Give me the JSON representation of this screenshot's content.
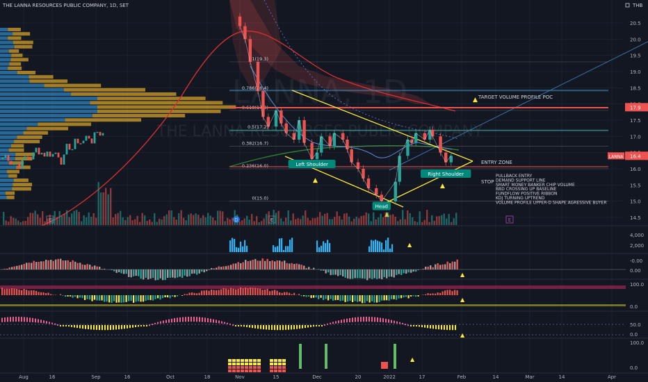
{
  "header": {
    "title": "THE LANNA RESOURCES PUBLIC COMPANY, 1D, SET",
    "currency": "THB"
  },
  "watermark": {
    "symbol": "LANNA, 1D",
    "company": "THE LANNA RESOURCES PUBLIC COMPANY"
  },
  "colors": {
    "background": "#131722",
    "up": "#26a69a",
    "down": "#ef5350",
    "yellow": "#ffeb3b",
    "fib": "#d1d4dc",
    "vp_orange": "#d4a22a",
    "vp_blue": "#2e86c1"
  },
  "chart_data": {
    "type": "line",
    "title": "THE LANNA RESOURCES PUBLIC COMPANY, 1D, SET",
    "y_axis_ticks": [
      "20.5",
      "20.0",
      "19.5",
      "19.0",
      "18.5",
      "18.0",
      "17.5",
      "17.0",
      "16.5",
      "16.0",
      "15.5",
      "15.0",
      "14.5"
    ],
    "ylim": [
      14.5,
      20.5
    ],
    "x_axis_ticks": [
      "Aug",
      "16",
      "Sep",
      "16",
      "Oct",
      "18",
      "Nov",
      "15",
      "Dec",
      "20",
      "2022",
      "17",
      "Feb",
      "14",
      "Mar",
      "14",
      "Apr"
    ],
    "close_series": [
      {
        "x": "Nov 01",
        "y": 20.4
      },
      {
        "x": "Nov 03",
        "y": 20.0
      },
      {
        "x": "Nov 05",
        "y": 19.3
      },
      {
        "x": "Nov 08",
        "y": 18.4
      },
      {
        "x": "Nov 10",
        "y": 17.6
      },
      {
        "x": "Nov 12",
        "y": 17.3
      },
      {
        "x": "Nov 15",
        "y": 17.8
      },
      {
        "x": "Nov 17",
        "y": 17.4
      },
      {
        "x": "Nov 19",
        "y": 17.1
      },
      {
        "x": "Nov 22",
        "y": 16.9
      },
      {
        "x": "Nov 24",
        "y": 17.5
      },
      {
        "x": "Nov 26",
        "y": 16.8
      },
      {
        "x": "Nov 29",
        "y": 16.3
      },
      {
        "x": "Dec 01",
        "y": 16.5
      },
      {
        "x": "Dec 03",
        "y": 17.0
      },
      {
        "x": "Dec 07",
        "y": 16.7
      },
      {
        "x": "Dec 09",
        "y": 17.1
      },
      {
        "x": "Dec 13",
        "y": 16.9
      },
      {
        "x": "Dec 15",
        "y": 16.6
      },
      {
        "x": "Dec 17",
        "y": 16.2
      },
      {
        "x": "Dec 20",
        "y": 16.0
      },
      {
        "x": "Dec 22",
        "y": 15.7
      },
      {
        "x": "Dec 24",
        "y": 15.4
      },
      {
        "x": "Dec 27",
        "y": 15.2
      },
      {
        "x": "Dec 29",
        "y": 15.0
      },
      {
        "x": "Jan 04",
        "y": 15.6
      },
      {
        "x": "Jan 06",
        "y": 16.4
      },
      {
        "x": "Jan 10",
        "y": 16.9
      },
      {
        "x": "Jan 12",
        "y": 16.8
      },
      {
        "x": "Jan 14",
        "y": 17.1
      },
      {
        "x": "Jan 18",
        "y": 16.9
      },
      {
        "x": "Jan 20",
        "y": 17.2
      },
      {
        "x": "Jan 21",
        "y": 17.0
      },
      {
        "x": "Jan 24",
        "y": 16.5
      },
      {
        "x": "Jan 26",
        "y": 16.2
      },
      {
        "x": "Jan 28",
        "y": 16.4
      }
    ],
    "fib_levels": [
      {
        "label": "1(19.3)",
        "y": 19.3
      },
      {
        "label": "0.786(18.4)",
        "y": 18.4
      },
      {
        "label": "0.618(17.8)",
        "y": 17.8
      },
      {
        "label": "0.5(17.2)",
        "y": 17.2
      },
      {
        "label": "0.382(16.7)",
        "y": 16.7
      },
      {
        "label": "0.236(16.0)",
        "y": 16.0
      },
      {
        "label": "0(15.0)",
        "y": 15.0
      }
    ],
    "price_tags": [
      {
        "label": "17.9",
        "y": 17.9,
        "color": "#ef5350"
      },
      {
        "label": "16.4",
        "y": 16.4,
        "color": "#ef5350",
        "symbol": "LANNA"
      }
    ],
    "pattern_labels": [
      {
        "label": "Left Shoulder",
        "x": "Nov 29",
        "y": 16.15
      },
      {
        "label": "Head",
        "x": "Dec 29",
        "y": 14.85
      },
      {
        "label": "Right Shoulder",
        "x": "Jan 26",
        "y": 15.85
      }
    ],
    "annotations": [
      {
        "text": "TARGET VOLUME PROFILE POC",
        "y": 18.3
      },
      {
        "text": "ENTRY ZONE",
        "y": 16.35
      },
      {
        "text": "STOP",
        "y": 15.7
      }
    ],
    "notes": [
      "PULLBACK ENTRY",
      "DEMAND SUPPORT LINE",
      "SMART MONEY BANKER CHIP VOLUME",
      "BBD CROSSING UP BASELINE",
      "FUNDFLOW POSITIVE RIBBON",
      "KDJ TURNING UPTREND",
      "VOLUME PROFILE UPPER-D SHAPE AGRESSIVE BUYER"
    ],
    "pane_ticks": {
      "volume": [
        "4,000",
        "2,000"
      ],
      "momentum": [
        "0.00",
        "-0.00"
      ],
      "ribbon": [
        "100.0",
        "0.0"
      ],
      "kdj": [
        "50.0",
        "0.0"
      ],
      "signal": [
        "100.0",
        "0.0"
      ]
    },
    "event_markers": [
      "E",
      "D",
      "E",
      "E"
    ],
    "grid": true,
    "legend": "none"
  }
}
